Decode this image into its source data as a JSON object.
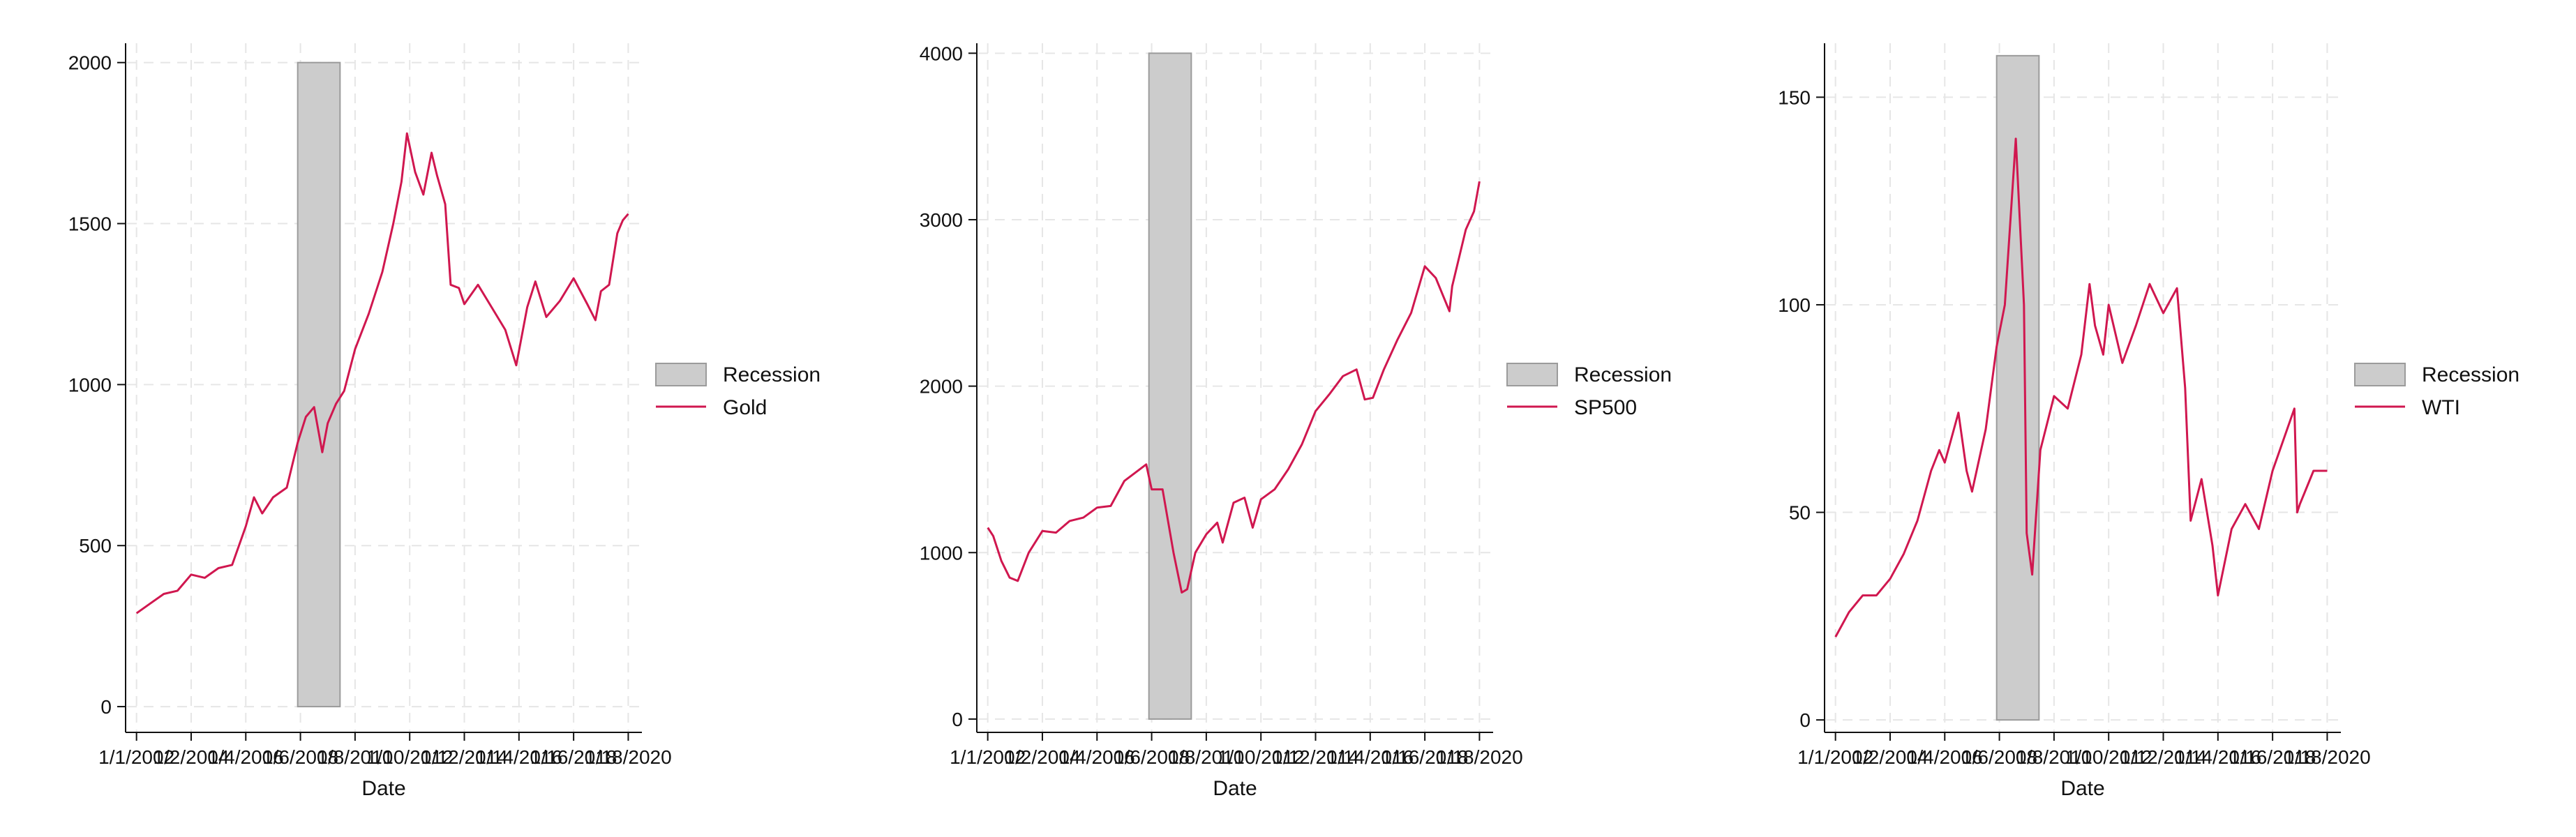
{
  "colors": {
    "series_line": "#d0174f",
    "recession_fill": "#cccccc",
    "recession_stroke": "#9b9b9b",
    "grid": "#e6e6e6",
    "axis": "#111111",
    "background": "#ffffff"
  },
  "chart_data": [
    {
      "type": "line",
      "xlabel": "Date",
      "ylabel": "",
      "x_tick_labels": [
        "1/1/2002",
        "1/2/2004",
        "1/4/2006",
        "1/6/2008",
        "1/8/2010",
        "1/10/2012",
        "1/12/2014",
        "1/14/2016",
        "1/16/2018",
        "1/18/2020"
      ],
      "x_tick_years": [
        2002,
        2004,
        2006,
        2008,
        2010,
        2012,
        2014,
        2016,
        2018,
        2020
      ],
      "xlim_years": [
        2001.6,
        2020.5
      ],
      "ylim": [
        -80,
        2060
      ],
      "y_ticks": [
        0,
        500,
        1000,
        1500,
        2000
      ],
      "grid": true,
      "legend_position": "right",
      "legend": [
        "Recession",
        "Gold"
      ],
      "recession": {
        "start_year": 2007.9,
        "end_year": 2009.45,
        "top": 2000
      },
      "series": [
        {
          "name": "Gold",
          "x_years": [
            2002.0,
            2002.5,
            2003.0,
            2003.5,
            2004.0,
            2004.5,
            2005.0,
            2005.5,
            2006.0,
            2006.3,
            2006.6,
            2007.0,
            2007.5,
            2007.9,
            2008.2,
            2008.5,
            2008.8,
            2009.0,
            2009.3,
            2009.6,
            2010.0,
            2010.5,
            2011.0,
            2011.4,
            2011.7,
            2011.9,
            2012.2,
            2012.5,
            2012.8,
            2013.0,
            2013.3,
            2013.5,
            2013.8,
            2014.0,
            2014.5,
            2015.0,
            2015.5,
            2015.9,
            2016.3,
            2016.6,
            2017.0,
            2017.5,
            2018.0,
            2018.5,
            2018.8,
            2019.0,
            2019.3,
            2019.6,
            2019.8,
            2020.0
          ],
          "values": [
            290,
            320,
            350,
            360,
            410,
            400,
            430,
            440,
            560,
            650,
            600,
            650,
            680,
            820,
            900,
            930,
            790,
            880,
            940,
            980,
            1110,
            1220,
            1350,
            1500,
            1630,
            1780,
            1660,
            1590,
            1720,
            1650,
            1560,
            1310,
            1300,
            1250,
            1310,
            1240,
            1170,
            1060,
            1240,
            1320,
            1210,
            1260,
            1330,
            1250,
            1200,
            1290,
            1310,
            1470,
            1510,
            1530
          ]
        }
      ]
    },
    {
      "type": "line",
      "xlabel": "Date",
      "ylabel": "",
      "x_tick_labels": [
        "1/1/2002",
        "1/2/2004",
        "1/4/2006",
        "1/6/2008",
        "1/8/2010",
        "1/10/2012",
        "1/12/2014",
        "1/14/2016",
        "1/16/2018",
        "1/18/2020"
      ],
      "x_tick_years": [
        2002,
        2004,
        2006,
        2008,
        2010,
        2012,
        2014,
        2016,
        2018,
        2020
      ],
      "xlim_years": [
        2001.6,
        2020.5
      ],
      "ylim": [
        -80,
        4060
      ],
      "y_ticks": [
        0,
        1000,
        2000,
        3000,
        4000
      ],
      "grid": true,
      "legend_position": "right",
      "legend": [
        "Recession",
        "SP500"
      ],
      "recession": {
        "start_year": 2007.9,
        "end_year": 2009.45,
        "top": 4000
      },
      "series": [
        {
          "name": "SP500",
          "x_years": [
            2002.0,
            2002.2,
            2002.5,
            2002.8,
            2003.1,
            2003.5,
            2004.0,
            2004.5,
            2005.0,
            2005.5,
            2006.0,
            2006.5,
            2007.0,
            2007.4,
            2007.8,
            2008.0,
            2008.4,
            2008.8,
            2009.1,
            2009.3,
            2009.6,
            2010.0,
            2010.4,
            2010.6,
            2011.0,
            2011.4,
            2011.7,
            2012.0,
            2012.5,
            2013.0,
            2013.5,
            2014.0,
            2014.5,
            2015.0,
            2015.5,
            2015.8,
            2016.1,
            2016.5,
            2017.0,
            2017.5,
            2018.0,
            2018.4,
            2018.9,
            2019.0,
            2019.5,
            2019.8,
            2020.0
          ],
          "values": [
            1150,
            1100,
            950,
            850,
            830,
            1000,
            1130,
            1120,
            1190,
            1210,
            1270,
            1280,
            1430,
            1480,
            1530,
            1380,
            1380,
            1000,
            760,
            780,
            1000,
            1110,
            1180,
            1060,
            1300,
            1330,
            1150,
            1320,
            1380,
            1500,
            1650,
            1850,
            1950,
            2060,
            2100,
            1920,
            1930,
            2100,
            2280,
            2440,
            2720,
            2650,
            2450,
            2600,
            2940,
            3050,
            3230
          ]
        }
      ]
    },
    {
      "type": "line",
      "xlabel": "Date",
      "ylabel": "",
      "x_tick_labels": [
        "1/1/2002",
        "1/2/2004",
        "1/4/2006",
        "1/6/2008",
        "1/8/2010",
        "1/10/2012",
        "1/12/2014",
        "1/14/2016",
        "1/16/2018",
        "1/18/2020"
      ],
      "x_tick_years": [
        2002,
        2004,
        2006,
        2008,
        2010,
        2012,
        2014,
        2016,
        2018,
        2020
      ],
      "xlim_years": [
        2001.6,
        2020.5
      ],
      "ylim": [
        -3,
        163
      ],
      "y_ticks": [
        0,
        50,
        100,
        150
      ],
      "grid": true,
      "legend_position": "right",
      "legend": [
        "Recession",
        "WTI"
      ],
      "recession": {
        "start_year": 2007.9,
        "end_year": 2009.45,
        "top": 160
      },
      "series": [
        {
          "name": "WTI",
          "x_years": [
            2002.0,
            2002.5,
            2003.0,
            2003.5,
            2004.0,
            2004.5,
            2005.0,
            2005.5,
            2005.8,
            2006.0,
            2006.5,
            2006.8,
            2007.0,
            2007.5,
            2007.9,
            2008.2,
            2008.5,
            2008.6,
            2008.9,
            2009.0,
            2009.2,
            2009.5,
            2010.0,
            2010.5,
            2011.0,
            2011.3,
            2011.5,
            2011.8,
            2012.0,
            2012.5,
            2013.0,
            2013.5,
            2014.0,
            2014.5,
            2014.8,
            2015.0,
            2015.4,
            2015.8,
            2016.0,
            2016.5,
            2017.0,
            2017.5,
            2018.0,
            2018.8,
            2018.9,
            2019.0,
            2019.5,
            2020.0
          ],
          "values": [
            20,
            26,
            30,
            30,
            34,
            40,
            48,
            60,
            65,
            62,
            74,
            60,
            55,
            70,
            90,
            100,
            130,
            140,
            100,
            45,
            35,
            65,
            78,
            75,
            88,
            105,
            95,
            88,
            100,
            86,
            95,
            105,
            98,
            104,
            80,
            48,
            58,
            42,
            30,
            46,
            52,
            46,
            60,
            75,
            50,
            52,
            60,
            60
          ]
        }
      ]
    }
  ]
}
